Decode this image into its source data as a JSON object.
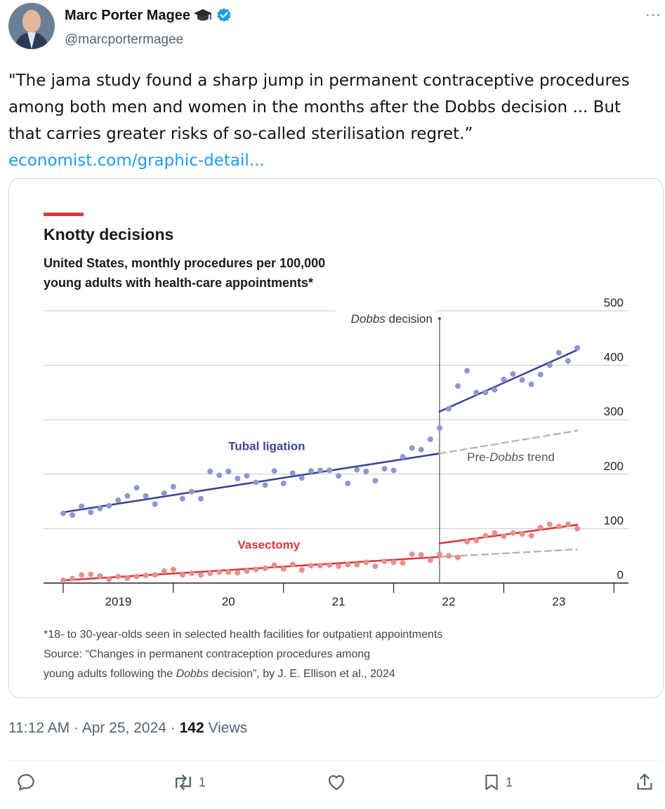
{
  "author": {
    "display_name": "Marc Porter Magee",
    "handle": "@marcportermagee",
    "avatar_icon": "profile-photo"
  },
  "tweet": {
    "text": "\"The jama study found a sharp jump in permanent contraceptive procedures among both men and women in the months after the Dobbs decision ... But that carries greater risks of so-called sterilisation regret.”",
    "link": "economist.com/graphic-detail..."
  },
  "chart": {
    "title": "Knotty decisions",
    "subtitle_line1": "United States, monthly procedures per 100,000",
    "subtitle_line2": "young adults with health-care appointments*",
    "dobbs_label_italic": "Dobbs",
    "dobbs_label_rest": " decision",
    "pre_dobbs_prefix": "Pre-",
    "pre_dobbs_italic": "Dobbs",
    "pre_dobbs_suffix": " trend",
    "footnote": "*18- to 30-year-olds seen in selected health facilities for outpatient appointments",
    "source_line1": "Source: “Changes in permanent contraception procedures among",
    "source_line2_a": "young adults following the ",
    "source_line2_italic": "Dobbs",
    "source_line2_b": " decision”, by J. E. Ellison et al., 2024",
    "accent_color": "#d8393a",
    "tubal_color": "#3c4696",
    "vasectomy_color": "#d8393a"
  },
  "chart_data": {
    "type": "scatter",
    "x_unit": "months since Jan 2019",
    "x_tick_labels": [
      "2019",
      "20",
      "21",
      "22",
      "23"
    ],
    "ylim": [
      0,
      500
    ],
    "y_ticks": [
      0,
      100,
      200,
      300,
      400,
      500
    ],
    "grid": true,
    "series": [
      {
        "name": "Tubal ligation",
        "color": "#8f97cf",
        "values": [
          128,
          125,
          141,
          130,
          137,
          142,
          152,
          160,
          175,
          160,
          145,
          165,
          177,
          155,
          168,
          155,
          205,
          198,
          205,
          192,
          197,
          185,
          180,
          206,
          183,
          202,
          193,
          206,
          207,
          207,
          197,
          183,
          208,
          205,
          188,
          210,
          207,
          232,
          248,
          245,
          264,
          285,
          320,
          362,
          390,
          350,
          350,
          355,
          374,
          384,
          373,
          365,
          383,
          400,
          423,
          408,
          432
        ]
      },
      {
        "name": "Vasectomy",
        "color": "#e9908c",
        "values": [
          5,
          8,
          15,
          16,
          13,
          7,
          12,
          9,
          12,
          14,
          15,
          22,
          25,
          15,
          18,
          15,
          18,
          20,
          20,
          19,
          22,
          25,
          27,
          33,
          26,
          34,
          24,
          32,
          32,
          33,
          31,
          34,
          34,
          38,
          31,
          40,
          38,
          37,
          53,
          52,
          42,
          53,
          50,
          47,
          76,
          78,
          87,
          92,
          86,
          92,
          90,
          87,
          102,
          108,
          104,
          108,
          100
        ]
      }
    ],
    "trend_lines": [
      {
        "name": "Tubal ligation",
        "segment": "pre",
        "start": [
          0,
          130
        ],
        "end": [
          41,
          238
        ]
      },
      {
        "name": "Tubal ligation",
        "segment": "post",
        "start": [
          41,
          315
        ],
        "end": [
          56,
          428
        ]
      },
      {
        "name": "Vasectomy",
        "segment": "pre",
        "start": [
          0,
          5
        ],
        "end": [
          41,
          48
        ]
      },
      {
        "name": "Vasectomy",
        "segment": "post",
        "start": [
          41,
          73
        ],
        "end": [
          56,
          107
        ]
      },
      {
        "name": "Pre-Dobbs trend",
        "segment": "tubal-projection",
        "start": [
          41,
          238
        ],
        "end": [
          56,
          280
        ]
      },
      {
        "name": "Pre-Dobbs trend",
        "segment": "vasectomy-projection",
        "start": [
          41,
          48
        ],
        "end": [
          56,
          62
        ]
      }
    ],
    "dobbs_month": 41
  },
  "timestamp": {
    "time": "11:12 AM",
    "sep": " · ",
    "date": "Apr 25, 2024",
    "views_count": "142",
    "views_label": " Views"
  },
  "actions": {
    "reply_count": "",
    "retweet_count": "1",
    "like_count": "",
    "bookmark_count": "1"
  }
}
